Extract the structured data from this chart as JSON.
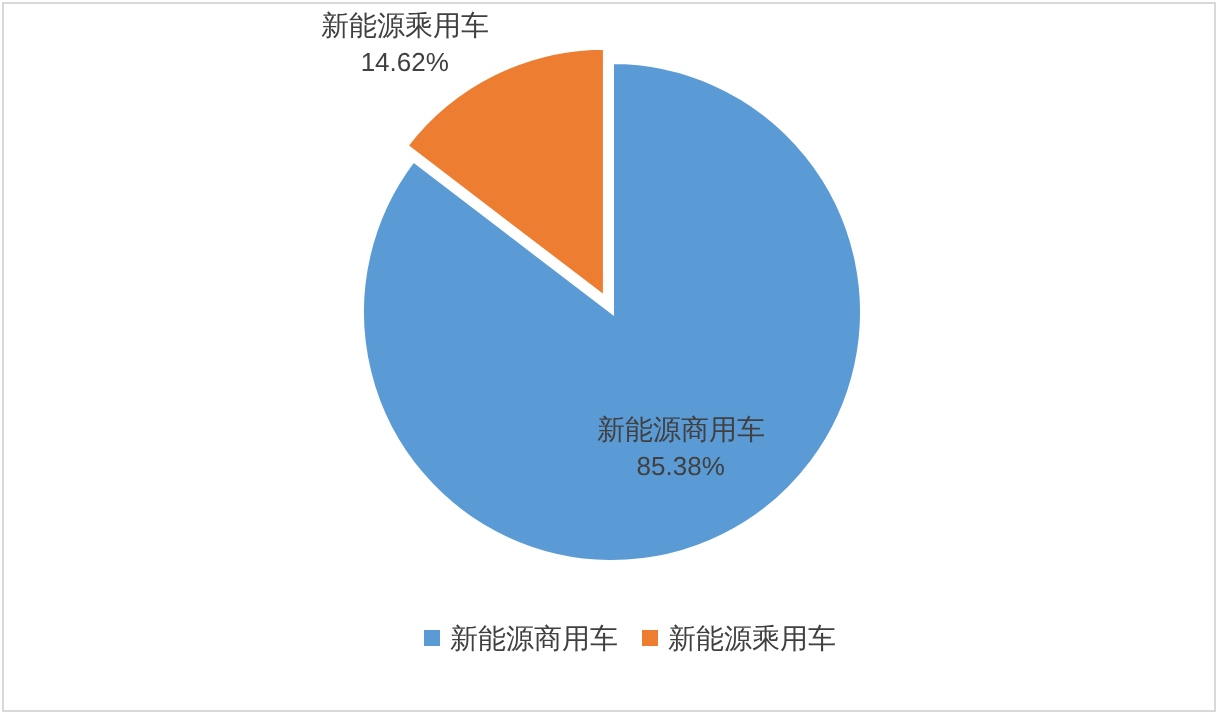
{
  "chart_data": {
    "type": "pie",
    "categories": [
      "新能源商用车",
      "新能源乘用车"
    ],
    "values": [
      85.38,
      14.62
    ],
    "colors": [
      "#5b9bd5",
      "#ed7d31"
    ],
    "value_labels": [
      "85.38%",
      "14.62%"
    ],
    "legend": "bottom"
  }
}
